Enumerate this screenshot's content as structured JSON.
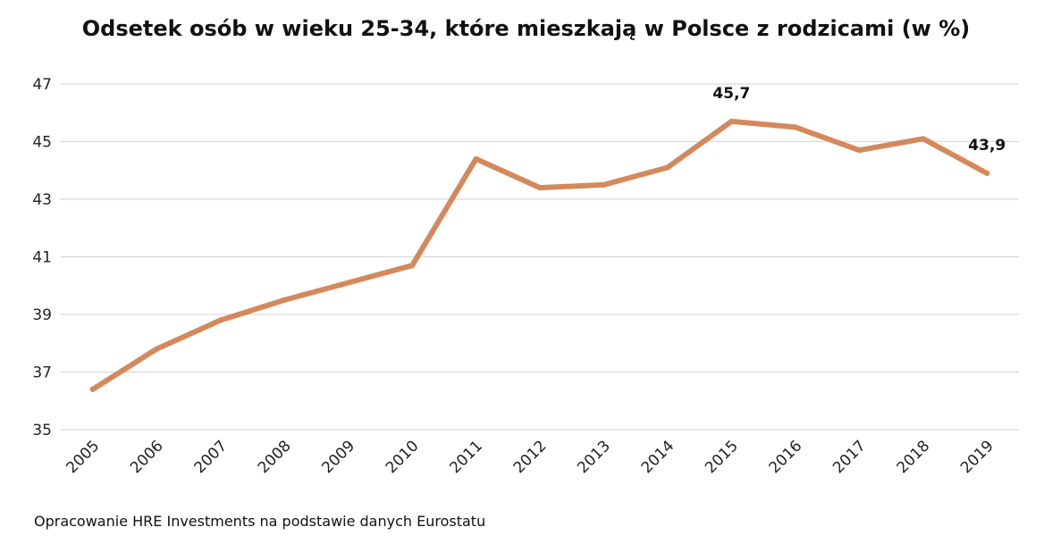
{
  "chart_data": {
    "type": "line",
    "title": "Odsetek osób w wieku 25-34, które mieszkają w Polsce z rodzicami (w %)",
    "xlabel": "",
    "ylabel": "",
    "categories": [
      "2005",
      "2006",
      "2007",
      "2008",
      "2009",
      "2010",
      "2011",
      "2012",
      "2013",
      "2014",
      "2015",
      "2016",
      "2017",
      "2018",
      "2019"
    ],
    "series": [
      {
        "values": [
          36.4,
          37.8,
          38.8,
          39.5,
          40.1,
          40.7,
          44.4,
          43.4,
          43.5,
          44.1,
          45.7,
          45.5,
          44.7,
          45.1,
          43.9
        ],
        "color": "#D4895C"
      }
    ],
    "ylim": [
      35,
      47
    ],
    "yticks": [
      "35",
      "37",
      "39",
      "41",
      "43",
      "45",
      "47"
    ],
    "grid": true,
    "legend": "none",
    "data_labels": [
      {
        "category": "2015",
        "text": "45,7"
      },
      {
        "category": "2019",
        "text": "43,9"
      }
    ]
  },
  "source_note": "Opracowanie HRE Investments na podstawie danych Eurostatu"
}
